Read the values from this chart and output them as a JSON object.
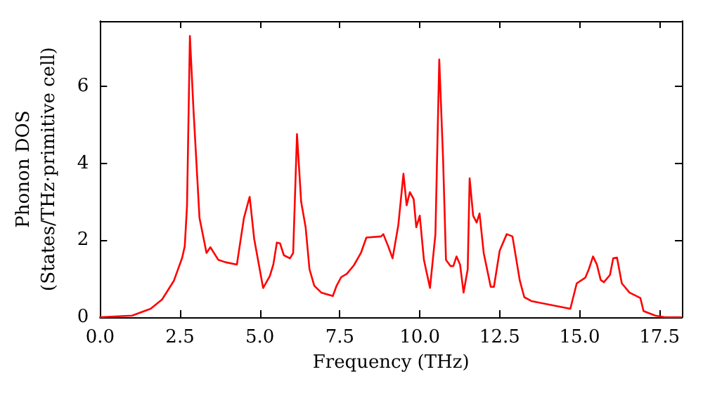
{
  "chart_data": {
    "type": "line",
    "xlabel": "Frequency (THz)",
    "ylabel": "Phonon DOS\n(States/THz·primitive cell)",
    "xlim": [
      0,
      18.2
    ],
    "ylim": [
      0,
      7.7
    ],
    "xticks": [
      {
        "value": 0,
        "label": "0.0"
      },
      {
        "value": 2.5,
        "label": "2.5"
      },
      {
        "value": 5,
        "label": "5.0"
      },
      {
        "value": 7.5,
        "label": "7.5"
      },
      {
        "value": 10,
        "label": "10.0"
      },
      {
        "value": 12.5,
        "label": "12.5"
      },
      {
        "value": 15,
        "label": "15.0"
      },
      {
        "value": 17.5,
        "label": "17.5"
      }
    ],
    "yticks": [
      0,
      2,
      4,
      6
    ],
    "grid": false,
    "marker": "none",
    "line_style": "solid",
    "series": [
      {
        "color": "#ff0000",
        "x": [
          0,
          1.0,
          1.58,
          1.94,
          2.31,
          2.57,
          2.65,
          2.72,
          2.81,
          2.92,
          3.11,
          3.33,
          3.45,
          3.7,
          3.92,
          4.28,
          4.5,
          4.68,
          4.82,
          5.1,
          5.31,
          5.42,
          5.53,
          5.63,
          5.75,
          5.94,
          6.04,
          6.16,
          6.29,
          6.43,
          6.55,
          6.7,
          6.92,
          7.28,
          7.4,
          7.54,
          7.72,
          7.94,
          8.16,
          8.33,
          8.79,
          8.86,
          9.01,
          9.15,
          9.33,
          9.49,
          9.59,
          9.69,
          9.81,
          9.89,
          10.0,
          10.13,
          10.32,
          10.49,
          10.61,
          10.73,
          10.82,
          10.96,
          11.05,
          11.15,
          11.26,
          11.37,
          11.5,
          11.56,
          11.67,
          11.78,
          11.87,
          12.0,
          12.22,
          12.32,
          12.5,
          12.72,
          12.9,
          13.13,
          13.27,
          13.49,
          14.71,
          14.91,
          15.18,
          15.29,
          15.42,
          15.54,
          15.66,
          15.76,
          15.95,
          16.05,
          16.17,
          16.32,
          16.56,
          16.78,
          16.9,
          17.0,
          17.37,
          17.66,
          18.17
        ],
        "values": [
          0,
          0.04,
          0.22,
          0.46,
          0.95,
          1.55,
          1.85,
          2.9,
          7.31,
          5.43,
          2.58,
          1.67,
          1.82,
          1.49,
          1.43,
          1.37,
          2.58,
          3.13,
          2.04,
          0.76,
          1.07,
          1.37,
          1.94,
          1.92,
          1.61,
          1.53,
          1.67,
          4.76,
          3.0,
          2.34,
          1.25,
          0.82,
          0.64,
          0.55,
          0.82,
          1.04,
          1.13,
          1.35,
          1.67,
          2.07,
          2.1,
          2.16,
          1.85,
          1.53,
          2.4,
          3.73,
          2.91,
          3.25,
          3.07,
          2.34,
          2.64,
          1.49,
          0.76,
          2.16,
          6.7,
          4.1,
          1.49,
          1.33,
          1.33,
          1.58,
          1.37,
          0.64,
          1.25,
          3.61,
          2.64,
          2.46,
          2.7,
          1.67,
          0.79,
          0.79,
          1.73,
          2.16,
          2.1,
          0.95,
          0.52,
          0.42,
          0.22,
          0.88,
          1.03,
          1.25,
          1.58,
          1.37,
          0.97,
          0.91,
          1.1,
          1.53,
          1.55,
          0.88,
          0.64,
          0.55,
          0.5,
          0.16,
          0.04,
          0,
          0
        ]
      }
    ]
  }
}
